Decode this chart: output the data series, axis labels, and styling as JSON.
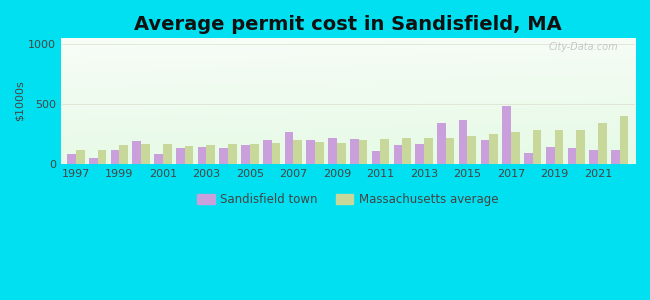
{
  "title": "Average permit cost in Sandisfield, MA",
  "ylabel": "$1000s",
  "years": [
    1997,
    1998,
    1999,
    2000,
    2001,
    2002,
    2003,
    2004,
    2005,
    2006,
    2007,
    2008,
    2009,
    2010,
    2011,
    2012,
    2013,
    2014,
    2015,
    2016,
    2017,
    2018,
    2019,
    2020,
    2021,
    2022
  ],
  "sandisfield": [
    80,
    50,
    120,
    190,
    80,
    130,
    140,
    130,
    160,
    200,
    270,
    200,
    220,
    210,
    110,
    160,
    165,
    340,
    365,
    200,
    480,
    95,
    140,
    130,
    120,
    120
  ],
  "ma_average": [
    120,
    120,
    155,
    165,
    165,
    150,
    155,
    165,
    170,
    175,
    200,
    185,
    175,
    200,
    210,
    215,
    215,
    215,
    235,
    250,
    265,
    285,
    285,
    280,
    340,
    400
  ],
  "sandisfield_color": "#c9a0dc",
  "ma_color": "#c8d89a",
  "outer_bg": "#00e0f0",
  "plot_bg_left": "#c8e8c8",
  "plot_bg_right": "#f0f8f0",
  "ylim": [
    0,
    1050
  ],
  "yticks": [
    0,
    500,
    1000
  ],
  "title_fontsize": 14,
  "tick_label_fontsize": 8,
  "watermark": "City-Data.com"
}
